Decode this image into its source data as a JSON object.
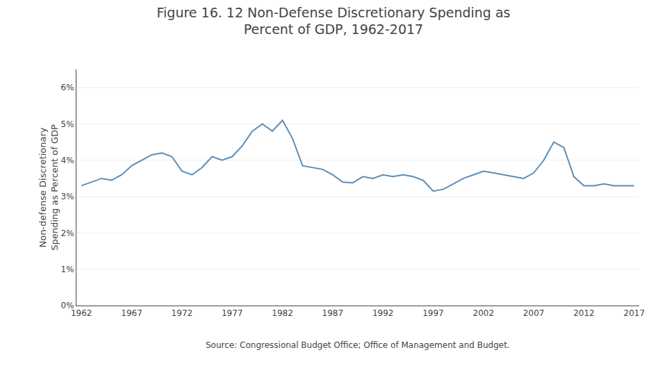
{
  "chart_data": {
    "type": "line",
    "title": "Figure 16. 12 Non-Defense Discretionary Spending as\nPercent of GDP, 1962-2017",
    "ylabel": "Non-defense Discretionary\nSpending as Percent of GDP",
    "annotations": [
      "Source: Congressional Budget Office; Office of Management and Budget."
    ],
    "color": "#5B8DB8",
    "x": [
      1962,
      1963,
      1964,
      1965,
      1966,
      1967,
      1968,
      1969,
      1970,
      1971,
      1972,
      1973,
      1974,
      1975,
      1976,
      1977,
      1978,
      1979,
      1980,
      1981,
      1982,
      1983,
      1984,
      1985,
      1986,
      1987,
      1988,
      1989,
      1990,
      1991,
      1992,
      1993,
      1994,
      1995,
      1996,
      1997,
      1998,
      1999,
      2000,
      2001,
      2002,
      2003,
      2004,
      2005,
      2006,
      2007,
      2008,
      2009,
      2010,
      2011,
      2012,
      2013,
      2014,
      2015,
      2016,
      2017
    ],
    "values": [
      3.3,
      3.4,
      3.5,
      3.45,
      3.6,
      3.85,
      4.0,
      4.15,
      4.2,
      4.1,
      3.7,
      3.6,
      3.8,
      4.1,
      4.0,
      4.1,
      4.4,
      4.8,
      5.0,
      4.8,
      5.1,
      4.6,
      3.85,
      3.8,
      3.75,
      3.6,
      3.4,
      3.38,
      3.55,
      3.5,
      3.6,
      3.55,
      3.6,
      3.55,
      3.45,
      3.15,
      3.2,
      3.35,
      3.5,
      3.6,
      3.7,
      3.65,
      3.6,
      3.55,
      3.5,
      3.65,
      4.0,
      4.5,
      4.35,
      3.55,
      3.3,
      3.3,
      3.35,
      3.3,
      3.3,
      3.3
    ],
    "xlim": [
      1961.5,
      2017.5
    ],
    "xticks": [
      1962,
      1967,
      1972,
      1977,
      1982,
      1987,
      1992,
      1997,
      2002,
      2007,
      2012,
      2017
    ],
    "ylim": [
      0,
      6.5
    ],
    "yticks": [
      {
        "value": 0,
        "label": "0%"
      },
      {
        "value": 1,
        "label": "1%"
      },
      {
        "value": 2,
        "label": "2%"
      },
      {
        "value": 3,
        "label": "3%"
      },
      {
        "value": 4,
        "label": "4%"
      },
      {
        "value": 5,
        "label": "5%"
      },
      {
        "value": 6,
        "label": "6%"
      }
    ],
    "grid": "y"
  }
}
